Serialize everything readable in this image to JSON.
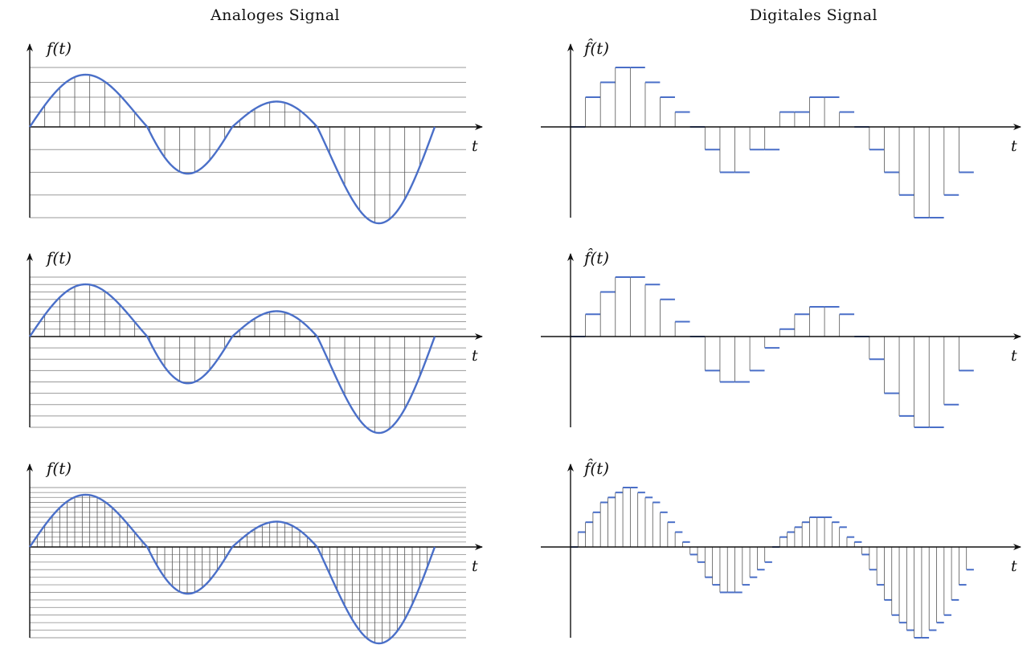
{
  "headings": {
    "analog": "Analoges Signal",
    "digital": "Digitales Signal"
  },
  "labels": {
    "analog_y": "f(t)",
    "digital_y": "f̂(t)",
    "x": "t"
  },
  "colors": {
    "signal": "#4a6fc8",
    "axis": "#111111",
    "grid": "#9a9a9a",
    "sample": "#555555"
  },
  "signal": {
    "description_free": true,
    "t_range": [
      0,
      1
    ],
    "components": [
      {
        "amplitude": 3.0,
        "cycles": 2.0
      },
      {
        "amplitude": 1.5,
        "cycles": 1.0
      }
    ]
  },
  "rows": [
    {
      "levels_per_side": 4,
      "samples": 27
    },
    {
      "levels_per_side": 8,
      "samples": 27
    },
    {
      "levels_per_side": 12,
      "samples": 54
    }
  ]
}
